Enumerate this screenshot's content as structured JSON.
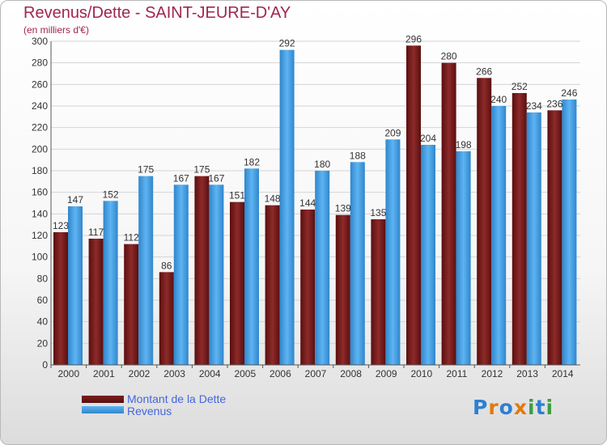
{
  "title": "Revenus/Dette - SAINT-JEURE-D'AY",
  "subtitle": "(en milliers d'€)",
  "logo": {
    "text": "Proxiti",
    "letters": [
      "P",
      "r",
      "o",
      "x",
      "i",
      "t",
      "i"
    ],
    "colors": [
      "#2e7fd0",
      "#e07a10",
      "#2e7fd0",
      "#e07a10",
      "#3aa040",
      "#2e7fd0",
      "#3aa040"
    ]
  },
  "chart_data": {
    "type": "bar",
    "categories": [
      "2000",
      "2001",
      "2002",
      "2003",
      "2004",
      "2005",
      "2006",
      "2007",
      "2008",
      "2009",
      "2010",
      "2011",
      "2012",
      "2013",
      "2014"
    ],
    "series": [
      {
        "name": "Montant de la Dette",
        "color": "#7a1e1e",
        "values": [
          123,
          117,
          112,
          86,
          175,
          151,
          148,
          144,
          139,
          135,
          296,
          280,
          266,
          252,
          236
        ]
      },
      {
        "name": "Revenus",
        "color": "#4aa3e8",
        "values": [
          147,
          152,
          175,
          167,
          167,
          182,
          292,
          180,
          188,
          209,
          204,
          198,
          240,
          234,
          246
        ]
      }
    ],
    "ylim": [
      0,
      300
    ],
    "yticks": [
      0,
      20,
      40,
      60,
      80,
      100,
      120,
      140,
      160,
      180,
      200,
      220,
      240,
      260,
      280,
      300
    ],
    "grid": true,
    "legend_position": "bottom-left"
  }
}
